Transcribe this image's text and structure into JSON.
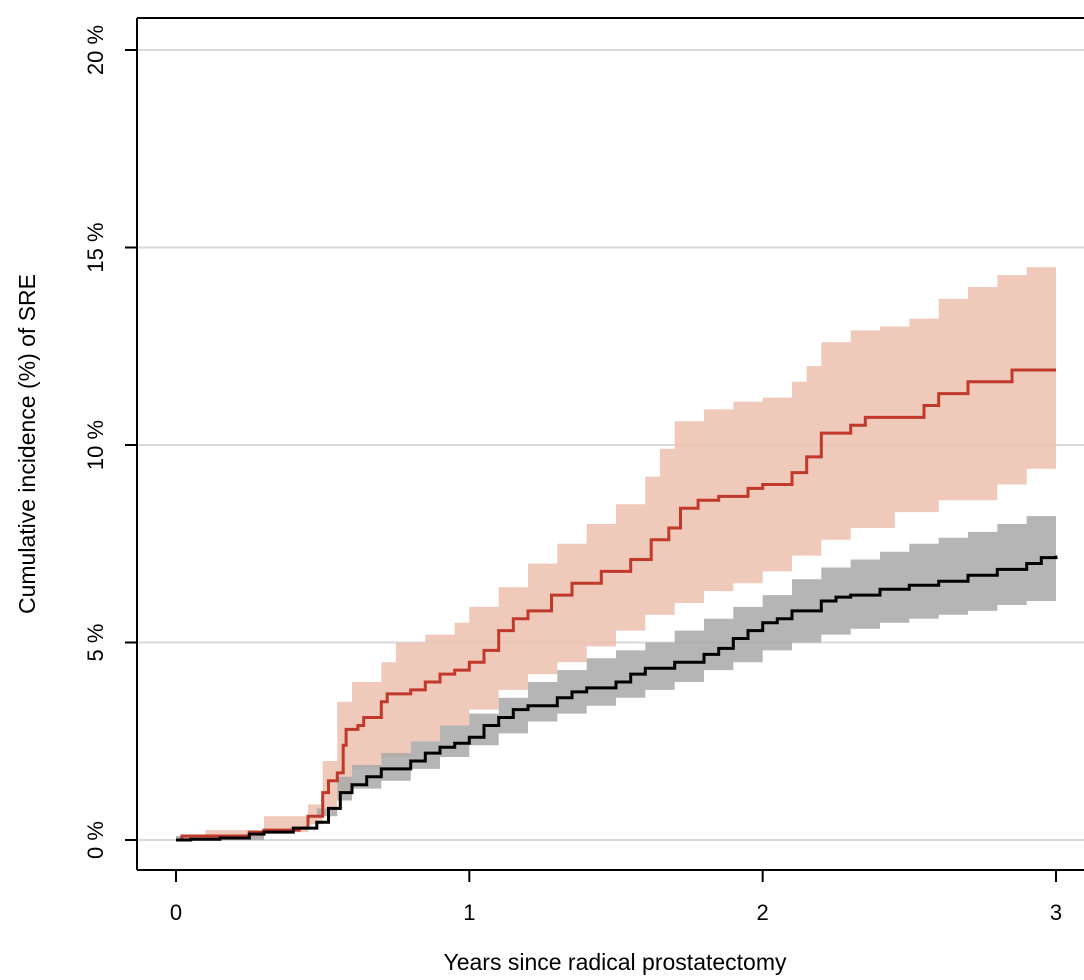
{
  "chart_data": {
    "type": "line",
    "title": "",
    "xlabel": "Years since radical prostatectomy",
    "ylabel": "Cumulative incidence (%) of SRE",
    "xlim": [
      0,
      3
    ],
    "ylim": [
      0,
      20
    ],
    "x_ticks": [
      {
        "value": 0,
        "label": "0"
      },
      {
        "value": 1,
        "label": "1"
      },
      {
        "value": 2,
        "label": "2"
      },
      {
        "value": 3,
        "label": "3"
      }
    ],
    "y_ticks": [
      {
        "value": 0,
        "label": "0 %"
      },
      {
        "value": 5,
        "label": "5 %"
      },
      {
        "value": 10,
        "label": "10 %"
      },
      {
        "value": 15,
        "label": "15 %"
      },
      {
        "value": 20,
        "label": "20 %"
      }
    ],
    "grid": "horizontal",
    "legend": "none",
    "step": true,
    "series": [
      {
        "color": "#c0392b",
        "band_color": "#ecc0ae",
        "points": [
          [
            0,
            0
          ],
          [
            0.02,
            0.1
          ],
          [
            0.25,
            0.2
          ],
          [
            0.3,
            0.25
          ],
          [
            0.42,
            0.3
          ],
          [
            0.45,
            0.6
          ],
          [
            0.49,
            0.6
          ],
          [
            0.5,
            1.2
          ],
          [
            0.52,
            1.5
          ],
          [
            0.55,
            1.7
          ],
          [
            0.57,
            2.4
          ],
          [
            0.58,
            2.8
          ],
          [
            0.62,
            2.9
          ],
          [
            0.64,
            3.1
          ],
          [
            0.7,
            3.5
          ],
          [
            0.72,
            3.7
          ],
          [
            0.8,
            3.8
          ],
          [
            0.85,
            4.0
          ],
          [
            0.9,
            4.2
          ],
          [
            0.95,
            4.3
          ],
          [
            1.0,
            4.5
          ],
          [
            1.05,
            4.8
          ],
          [
            1.1,
            5.3
          ],
          [
            1.15,
            5.6
          ],
          [
            1.2,
            5.8
          ],
          [
            1.28,
            6.2
          ],
          [
            1.35,
            6.5
          ],
          [
            1.45,
            6.8
          ],
          [
            1.55,
            7.1
          ],
          [
            1.62,
            7.6
          ],
          [
            1.68,
            7.9
          ],
          [
            1.72,
            8.4
          ],
          [
            1.78,
            8.6
          ],
          [
            1.85,
            8.7
          ],
          [
            1.95,
            8.9
          ],
          [
            2.0,
            9.0
          ],
          [
            2.1,
            9.3
          ],
          [
            2.15,
            9.7
          ],
          [
            2.2,
            10.3
          ],
          [
            2.3,
            10.5
          ],
          [
            2.35,
            10.7
          ],
          [
            2.55,
            11.0
          ],
          [
            2.6,
            11.3
          ],
          [
            2.7,
            11.6
          ],
          [
            2.85,
            11.9
          ],
          [
            3.0,
            11.9
          ]
        ],
        "lower": [
          [
            0,
            0
          ],
          [
            0.3,
            0.05
          ],
          [
            0.45,
            0.2
          ],
          [
            0.5,
            0.4
          ],
          [
            0.55,
            0.8
          ],
          [
            0.6,
            1.2
          ],
          [
            0.7,
            1.8
          ],
          [
            0.8,
            2.1
          ],
          [
            0.9,
            2.5
          ],
          [
            1.0,
            2.9
          ],
          [
            1.1,
            3.3
          ],
          [
            1.2,
            3.8
          ],
          [
            1.3,
            4.2
          ],
          [
            1.4,
            4.5
          ],
          [
            1.5,
            4.9
          ],
          [
            1.6,
            5.3
          ],
          [
            1.7,
            5.7
          ],
          [
            1.8,
            6.0
          ],
          [
            1.9,
            6.3
          ],
          [
            2.0,
            6.5
          ],
          [
            2.1,
            6.8
          ],
          [
            2.2,
            7.2
          ],
          [
            2.3,
            7.6
          ],
          [
            2.45,
            7.9
          ],
          [
            2.6,
            8.3
          ],
          [
            2.8,
            8.6
          ],
          [
            2.9,
            9.0
          ],
          [
            3.0,
            9.4
          ]
        ],
        "upper": [
          [
            0,
            0
          ],
          [
            0.1,
            0.25
          ],
          [
            0.3,
            0.6
          ],
          [
            0.45,
            0.9
          ],
          [
            0.5,
            2.0
          ],
          [
            0.55,
            3.5
          ],
          [
            0.6,
            4.0
          ],
          [
            0.7,
            4.5
          ],
          [
            0.75,
            5.0
          ],
          [
            0.85,
            5.2
          ],
          [
            0.95,
            5.5
          ],
          [
            1.0,
            5.9
          ],
          [
            1.1,
            6.4
          ],
          [
            1.2,
            7.0
          ],
          [
            1.3,
            7.5
          ],
          [
            1.4,
            8.0
          ],
          [
            1.5,
            8.5
          ],
          [
            1.6,
            9.2
          ],
          [
            1.65,
            9.9
          ],
          [
            1.7,
            10.6
          ],
          [
            1.8,
            10.9
          ],
          [
            1.9,
            11.1
          ],
          [
            2.0,
            11.2
          ],
          [
            2.1,
            11.6
          ],
          [
            2.15,
            12.0
          ],
          [
            2.2,
            12.6
          ],
          [
            2.3,
            12.9
          ],
          [
            2.4,
            13.0
          ],
          [
            2.5,
            13.2
          ],
          [
            2.6,
            13.7
          ],
          [
            2.7,
            14.0
          ],
          [
            2.8,
            14.3
          ],
          [
            2.9,
            14.5
          ],
          [
            3.0,
            14.5
          ]
        ]
      },
      {
        "color": "#000000",
        "band_color": "#a8a8a8",
        "points": [
          [
            0,
            0
          ],
          [
            0.05,
            0.02
          ],
          [
            0.15,
            0.05
          ],
          [
            0.25,
            0.15
          ],
          [
            0.3,
            0.2
          ],
          [
            0.4,
            0.3
          ],
          [
            0.48,
            0.45
          ],
          [
            0.52,
            0.8
          ],
          [
            0.56,
            1.2
          ],
          [
            0.6,
            1.4
          ],
          [
            0.65,
            1.6
          ],
          [
            0.7,
            1.8
          ],
          [
            0.75,
            1.8
          ],
          [
            0.8,
            2.0
          ],
          [
            0.85,
            2.2
          ],
          [
            0.9,
            2.35
          ],
          [
            0.95,
            2.45
          ],
          [
            1.0,
            2.6
          ],
          [
            1.05,
            2.9
          ],
          [
            1.1,
            3.1
          ],
          [
            1.15,
            3.3
          ],
          [
            1.2,
            3.4
          ],
          [
            1.3,
            3.6
          ],
          [
            1.35,
            3.75
          ],
          [
            1.4,
            3.85
          ],
          [
            1.5,
            4.0
          ],
          [
            1.55,
            4.2
          ],
          [
            1.6,
            4.35
          ],
          [
            1.7,
            4.5
          ],
          [
            1.8,
            4.7
          ],
          [
            1.85,
            4.85
          ],
          [
            1.9,
            5.1
          ],
          [
            1.95,
            5.3
          ],
          [
            2.0,
            5.5
          ],
          [
            2.05,
            5.6
          ],
          [
            2.1,
            5.8
          ],
          [
            2.2,
            6.05
          ],
          [
            2.25,
            6.15
          ],
          [
            2.3,
            6.2
          ],
          [
            2.4,
            6.35
          ],
          [
            2.5,
            6.45
          ],
          [
            2.6,
            6.55
          ],
          [
            2.7,
            6.7
          ],
          [
            2.8,
            6.85
          ],
          [
            2.9,
            7.0
          ],
          [
            2.95,
            7.15
          ],
          [
            3.0,
            7.2
          ]
        ],
        "lower": [
          [
            0,
            0
          ],
          [
            0.3,
            0.1
          ],
          [
            0.48,
            0.3
          ],
          [
            0.55,
            0.8
          ],
          [
            0.6,
            1.0
          ],
          [
            0.7,
            1.3
          ],
          [
            0.8,
            1.5
          ],
          [
            0.9,
            1.8
          ],
          [
            1.0,
            2.1
          ],
          [
            1.1,
            2.4
          ],
          [
            1.2,
            2.7
          ],
          [
            1.3,
            3.0
          ],
          [
            1.4,
            3.2
          ],
          [
            1.5,
            3.4
          ],
          [
            1.6,
            3.6
          ],
          [
            1.7,
            3.8
          ],
          [
            1.8,
            4.0
          ],
          [
            1.9,
            4.3
          ],
          [
            2.0,
            4.5
          ],
          [
            2.1,
            4.8
          ],
          [
            2.2,
            5.0
          ],
          [
            2.3,
            5.2
          ],
          [
            2.4,
            5.35
          ],
          [
            2.5,
            5.5
          ],
          [
            2.6,
            5.6
          ],
          [
            2.7,
            5.7
          ],
          [
            2.8,
            5.8
          ],
          [
            2.9,
            5.95
          ],
          [
            3.0,
            6.05
          ]
        ],
        "upper": [
          [
            0,
            0
          ],
          [
            0.3,
            0.3
          ],
          [
            0.48,
            0.6
          ],
          [
            0.55,
            1.6
          ],
          [
            0.6,
            1.9
          ],
          [
            0.7,
            2.2
          ],
          [
            0.8,
            2.5
          ],
          [
            0.9,
            2.9
          ],
          [
            1.0,
            3.2
          ],
          [
            1.1,
            3.6
          ],
          [
            1.2,
            4.0
          ],
          [
            1.3,
            4.3
          ],
          [
            1.4,
            4.6
          ],
          [
            1.5,
            4.8
          ],
          [
            1.6,
            5.0
          ],
          [
            1.7,
            5.3
          ],
          [
            1.8,
            5.6
          ],
          [
            1.9,
            5.9
          ],
          [
            2.0,
            6.2
          ],
          [
            2.1,
            6.6
          ],
          [
            2.2,
            6.9
          ],
          [
            2.3,
            7.1
          ],
          [
            2.4,
            7.3
          ],
          [
            2.5,
            7.5
          ],
          [
            2.6,
            7.65
          ],
          [
            2.7,
            7.8
          ],
          [
            2.8,
            8.0
          ],
          [
            2.9,
            8.2
          ],
          [
            3.0,
            8.4
          ]
        ]
      }
    ]
  }
}
